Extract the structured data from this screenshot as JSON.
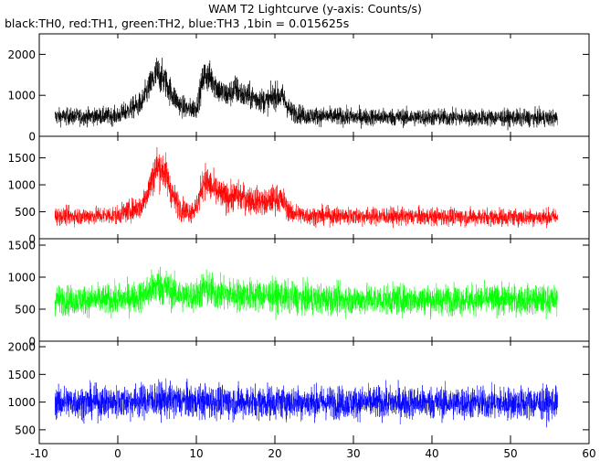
{
  "chart_data": {
    "type": "line",
    "title": "WAM T2 Lightcurve (y-axis: Counts/s)",
    "subtitle": "black:TH0, red:TH1, green:TH2, blue:TH3 ,1bin = 0.015625s",
    "xlabel": "",
    "ylabel": "",
    "bin_width_s": 0.015625,
    "xlim": [
      -10,
      60
    ],
    "x_ticks": [
      -10,
      0,
      10,
      20,
      30,
      40,
      50,
      60
    ],
    "data_range": [
      -8,
      56
    ],
    "grid": false,
    "legend": "none",
    "panels": [
      {
        "series": "TH0",
        "color": "#000000",
        "ylim": [
          0,
          2500
        ],
        "y_ticks": [
          0,
          1000,
          2000
        ],
        "profile": {
          "x": [
            -8,
            -4,
            0,
            3,
            4,
            5,
            6,
            7,
            8,
            9,
            10,
            11,
            12,
            13,
            14,
            15,
            16,
            17,
            18,
            19,
            20,
            21,
            22,
            24,
            30,
            40,
            50,
            56
          ],
          "mean": [
            480,
            480,
            500,
            800,
            1200,
            1550,
            1350,
            1000,
            750,
            650,
            700,
            1500,
            1400,
            1100,
            1000,
            1150,
            1000,
            950,
            900,
            850,
            1000,
            950,
            600,
            500,
            470,
            460,
            450,
            440
          ],
          "spread": [
            230,
            230,
            240,
            330,
            400,
            480,
            430,
            360,
            300,
            280,
            290,
            450,
            430,
            380,
            360,
            400,
            360,
            350,
            340,
            330,
            360,
            350,
            280,
            250,
            240,
            235,
            230,
            230
          ]
        }
      },
      {
        "series": "TH1",
        "color": "#ff0000",
        "ylim": [
          0,
          1900
        ],
        "y_ticks": [
          0,
          500,
          1000,
          1500
        ],
        "profile": {
          "x": [
            -8,
            -4,
            0,
            3,
            4,
            5,
            6,
            7,
            8,
            9,
            10,
            11,
            12,
            13,
            14,
            15,
            16,
            17,
            18,
            19,
            20,
            21,
            22,
            24,
            30,
            40,
            50,
            56
          ],
          "mean": [
            420,
            420,
            440,
            600,
            950,
            1350,
            1250,
            800,
            560,
            500,
            560,
            1100,
            950,
            820,
            760,
            800,
            760,
            720,
            700,
            660,
            760,
            700,
            480,
            430,
            420,
            410,
            400,
            400
          ],
          "spread": [
            180,
            180,
            190,
            250,
            330,
            420,
            400,
            300,
            240,
            220,
            240,
            370,
            340,
            310,
            300,
            310,
            300,
            290,
            280,
            270,
            300,
            280,
            210,
            190,
            185,
            180,
            180,
            180
          ]
        }
      },
      {
        "series": "TH2",
        "color": "#00ff00",
        "ylim": [
          0,
          1600
        ],
        "y_ticks": [
          0,
          500,
          1000,
          1500
        ],
        "profile": {
          "x": [
            -8,
            -4,
            0,
            3,
            4,
            5,
            6,
            7,
            8,
            9,
            10,
            11,
            12,
            13,
            15,
            20,
            22,
            24,
            30,
            40,
            50,
            56
          ],
          "mean": [
            640,
            640,
            650,
            700,
            780,
            880,
            840,
            760,
            720,
            700,
            720,
            820,
            780,
            740,
            720,
            710,
            680,
            660,
            650,
            650,
            650,
            640
          ],
          "spread": [
            260,
            260,
            265,
            280,
            310,
            350,
            340,
            300,
            285,
            280,
            285,
            330,
            310,
            295,
            290,
            285,
            275,
            265,
            262,
            260,
            260,
            260
          ]
        }
      },
      {
        "series": "TH3",
        "color": "#0000ff",
        "ylim": [
          250,
          2100
        ],
        "y_ticks": [
          500,
          1000,
          1500,
          2000
        ],
        "profile": {
          "x": [
            -8,
            0,
            5,
            10,
            20,
            30,
            40,
            50,
            56
          ],
          "mean": [
            1000,
            1000,
            1040,
            1010,
            1000,
            990,
            990,
            980,
            980
          ],
          "spread": [
            330,
            330,
            360,
            340,
            335,
            330,
            330,
            330,
            330
          ]
        }
      }
    ]
  }
}
